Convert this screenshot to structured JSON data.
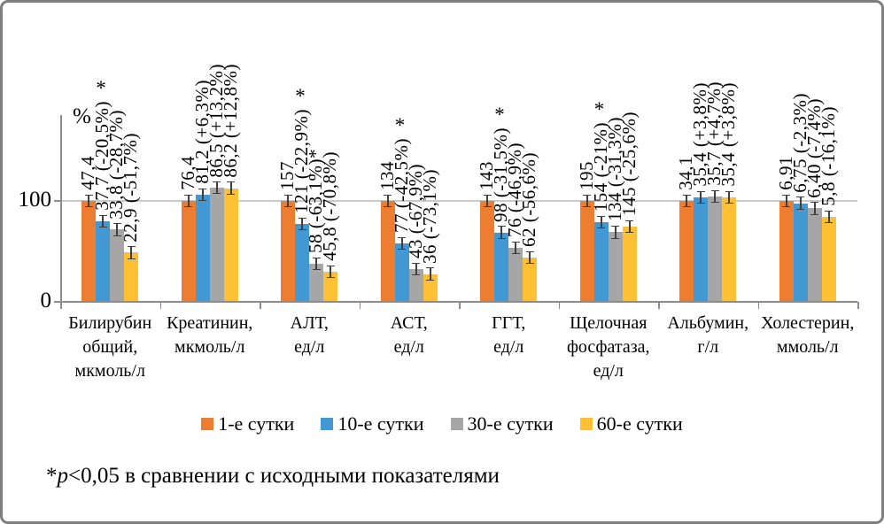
{
  "chart_data": {
    "type": "bar",
    "title": "",
    "ylabel": "%",
    "ylim": [
      0,
      186
    ],
    "grid": "horizontal line at 100 only",
    "legend_position": "bottom-center",
    "yticks": [
      {
        "percent": 0,
        "label": "0"
      },
      {
        "percent": 100,
        "label": "100"
      }
    ],
    "series": [
      {
        "name": "1-е сутки",
        "color": "#ED7D31"
      },
      {
        "name": "10-е сутки",
        "color": "#4198D3"
      },
      {
        "name": "30-е сутки",
        "color": "#A6A6A6"
      },
      {
        "name": "60-е сутки",
        "color": "#FFC033"
      }
    ],
    "error_bar_percent": 5,
    "groups": [
      {
        "category_lines": [
          "Билирубин",
          "общий,",
          "мкмоль/л"
        ],
        "asterisk": true,
        "bars": [
          {
            "label": "47,4",
            "percent": 100
          },
          {
            "label": "37,7 (-20,5%)",
            "percent": 79.5
          },
          {
            "label": "33,8 (-28,7%)",
            "percent": 71.3
          },
          {
            "label": "22,9 (-51,7%)",
            "percent": 48.3
          }
        ]
      },
      {
        "category_lines": [
          "Креатинин,",
          "мкмоль/л"
        ],
        "asterisk": false,
        "bars": [
          {
            "label": "76,4",
            "percent": 100
          },
          {
            "label": "81,2 (+6,3%)",
            "percent": 106.3
          },
          {
            "label": "86,5 (+13,2%)",
            "percent": 113.2
          },
          {
            "label": "86,2 (+12,8%)",
            "percent": 112.8
          }
        ]
      },
      {
        "category_lines": [
          "АЛТ,",
          "ед/л"
        ],
        "asterisk": true,
        "bars": [
          {
            "label": "157",
            "percent": 100
          },
          {
            "label": "121 (-22,9%)",
            "percent": 77.1
          },
          {
            "label": "58 (-63,1%)*",
            "percent": 36.9
          },
          {
            "label": "45,8 (-70,8%)",
            "percent": 29.2
          }
        ]
      },
      {
        "category_lines": [
          "АСТ,",
          "ед/л"
        ],
        "asterisk": true,
        "bars": [
          {
            "label": "134",
            "percent": 100
          },
          {
            "label": "77 (-42,5%)",
            "percent": 57.5
          },
          {
            "label": "43 (-67,9%)",
            "percent": 32.1
          },
          {
            "label": "36 (-73,1%)",
            "percent": 26.9
          }
        ]
      },
      {
        "category_lines": [
          "ГГТ,",
          "ед/л"
        ],
        "asterisk": true,
        "bars": [
          {
            "label": "143",
            "percent": 100
          },
          {
            "label": "98 (-31,5%)",
            "percent": 68.5
          },
          {
            "label": "76 (-46,9%)",
            "percent": 53.1
          },
          {
            "label": "62 (-56,6%)",
            "percent": 43.4
          }
        ]
      },
      {
        "category_lines": [
          "Щелочная",
          "фосфатаза,",
          "ед/л"
        ],
        "asterisk": true,
        "bars": [
          {
            "label": "195",
            "percent": 100
          },
          {
            "label": "154 (-21%)",
            "percent": 79.0
          },
          {
            "label": "134 (-31,3%)",
            "percent": 68.7
          },
          {
            "label": "145 (-25,6%)",
            "percent": 74.4
          }
        ]
      },
      {
        "category_lines": [
          "Альбумин,",
          "г/л"
        ],
        "asterisk": false,
        "bars": [
          {
            "label": "34,1",
            "percent": 100
          },
          {
            "label": "35,4 (+3,8%)",
            "percent": 103.8
          },
          {
            "label": "35,7 (+4,7%)",
            "percent": 104.7
          },
          {
            "label": "35,4 (+3,8%)",
            "percent": 103.8
          }
        ]
      },
      {
        "category_lines": [
          "Холестерин,",
          "ммоль/л"
        ],
        "asterisk": false,
        "bars": [
          {
            "label": "6,91",
            "percent": 100
          },
          {
            "label": "6,75 (-2,3%)",
            "percent": 97.7
          },
          {
            "label": "6,40 (-7,4%)",
            "percent": 92.6
          },
          {
            "label": "5,8 (-16,1%)",
            "percent": 83.9
          }
        ]
      }
    ],
    "footnote": {
      "star": "*",
      "p": "p",
      "rest": "<0,05 в сравнении с исходными показателями"
    }
  }
}
